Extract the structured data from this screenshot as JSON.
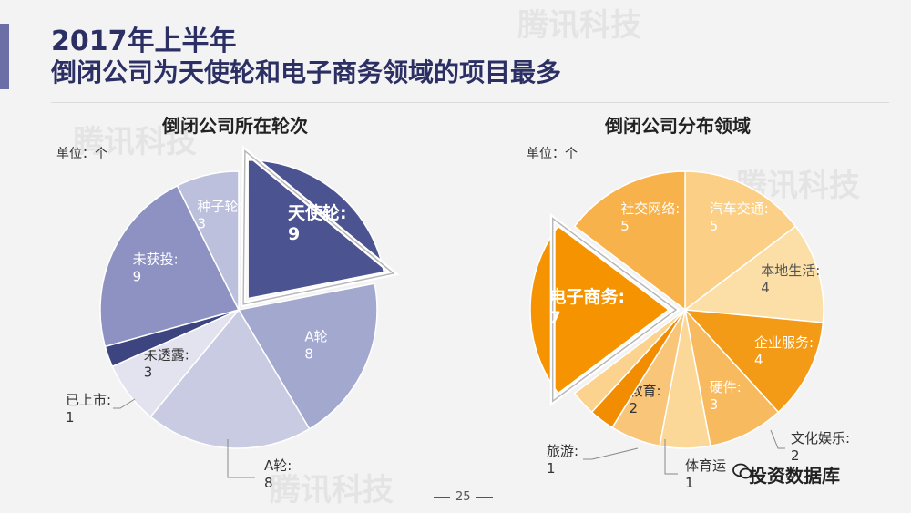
{
  "header": {
    "line1": "2017年上半年",
    "line2": "倒闭公司为天使轮和电子商务领域的项目最多"
  },
  "watermark": "腾讯科技",
  "chart_data": [
    {
      "type": "pie",
      "title": "倒闭公司所在轮次",
      "unit_label": "单位：个",
      "slices": [
        {
          "label": "天使轮:",
          "value": 9,
          "color": "#4b5391",
          "highlight": true
        },
        {
          "label": "A轮",
          "value": 8,
          "color": "#a3a8cf"
        },
        {
          "label": "A轮:",
          "value": 8,
          "color": "#c8cbe2"
        },
        {
          "label": "未透露:",
          "value": 3,
          "color": "#e2e3ef"
        },
        {
          "label": "已上市:",
          "value": 1,
          "color": "#3c457f"
        },
        {
          "label": "未获投:",
          "value": 9,
          "color": "#8d92c2"
        },
        {
          "label": "种子轮:",
          "value": 3,
          "color": "#bcc0dc"
        }
      ]
    },
    {
      "type": "pie",
      "title": "倒闭公司分布领域",
      "unit_label": "单位：个",
      "slices": [
        {
          "label": "汽车交通:",
          "value": 5,
          "color": "#fbcf85"
        },
        {
          "label": "本地生活:",
          "value": 4,
          "color": "#fbdfa6"
        },
        {
          "label": "企业服务:",
          "value": 4,
          "color": "#f39a16"
        },
        {
          "label": "硬件:",
          "value": 3,
          "color": "#f8ba5f"
        },
        {
          "label": "文化娱乐:",
          "value": 2,
          "color": "#fcd898"
        },
        {
          "label": "教育:",
          "value": 2,
          "color": "#f9c578"
        },
        {
          "label": "体育运",
          "value": 1,
          "color": "#f28c00"
        },
        {
          "label": "旅游:",
          "value": 1,
          "color": "#fbd38e"
        },
        {
          "label": "电子商务:",
          "value": 7,
          "color": "#f59300",
          "highlight": true
        },
        {
          "label": "社交网络:",
          "value": 5,
          "color": "#f7b24b"
        }
      ]
    }
  ],
  "page_number": "25",
  "brand": {
    "name": "投资数据库"
  }
}
